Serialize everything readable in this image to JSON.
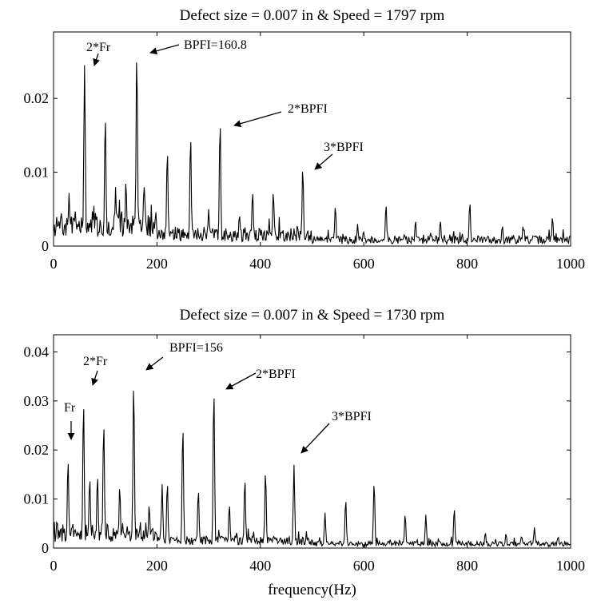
{
  "chart_data": [
    {
      "type": "line",
      "title": "Defect size = 0.007 in & Speed = 1797 rpm",
      "xlabel": "",
      "ylabel": "",
      "xlim": [
        0,
        1000
      ],
      "ylim": [
        0,
        0.029
      ],
      "xticks": [
        "0",
        "200",
        "400",
        "600",
        "800",
        "1000"
      ],
      "yticks": [
        "0",
        "0.01",
        "0.02"
      ],
      "ytick_values": [
        0,
        0.01,
        0.02
      ],
      "series": [
        {
          "peaks": [
            [
              30,
              0.0072
            ],
            [
              60,
              0.0245
            ],
            [
              100,
              0.0178
            ],
            [
              120,
              0.008
            ],
            [
              140,
              0.009
            ],
            [
              161,
              0.0265
            ],
            [
              175,
              0.0085
            ],
            [
              220,
              0.013
            ],
            [
              265,
              0.015
            ],
            [
              300,
              0.005
            ],
            [
              322,
              0.017
            ],
            [
              360,
              0.004
            ],
            [
              385,
              0.0075
            ],
            [
              425,
              0.0075
            ],
            [
              482,
              0.0107
            ],
            [
              545,
              0.0055
            ],
            [
              588,
              0.003
            ],
            [
              643,
              0.0057
            ],
            [
              700,
              0.0035
            ],
            [
              748,
              0.0035
            ],
            [
              805,
              0.006
            ],
            [
              868,
              0.0028
            ],
            [
              908,
              0.0028
            ],
            [
              965,
              0.004
            ]
          ]
        }
      ],
      "annotations": [
        {
          "text": "2*Fr",
          "x": 60,
          "y": 0.0245
        },
        {
          "text": "BPFI=160.8",
          "x": 161,
          "y": 0.0265
        },
        {
          "text": "2*BPFI",
          "x": 322,
          "y": 0.017
        },
        {
          "text": "3*BPFI",
          "x": 482,
          "y": 0.0107
        }
      ]
    },
    {
      "type": "line",
      "title": "Defect size = 0.007 in & Speed = 1730 rpm",
      "xlabel": "frequency(Hz)",
      "ylabel": "",
      "xlim": [
        0,
        1000
      ],
      "ylim": [
        0,
        0.0435
      ],
      "xticks": [
        "0",
        "200",
        "400",
        "600",
        "800",
        "1000"
      ],
      "yticks": [
        "0",
        "0.01",
        "0.02",
        "0.03",
        "0.04"
      ],
      "ytick_values": [
        0,
        0.01,
        0.02,
        0.03,
        0.04
      ],
      "series": [
        {
          "peaks": [
            [
              28,
              0.0183
            ],
            [
              58,
              0.0302
            ],
            [
              70,
              0.0145
            ],
            [
              85,
              0.015
            ],
            [
              97,
              0.0258
            ],
            [
              128,
              0.0128
            ],
            [
              155,
              0.0342
            ],
            [
              185,
              0.009
            ],
            [
              210,
              0.013
            ],
            [
              220,
              0.0135
            ],
            [
              250,
              0.025
            ],
            [
              280,
              0.012
            ],
            [
              310,
              0.0325
            ],
            [
              340,
              0.009
            ],
            [
              370,
              0.0142
            ],
            [
              410,
              0.0158
            ],
            [
              465,
              0.017
            ],
            [
              525,
              0.0072
            ],
            [
              565,
              0.01
            ],
            [
              620,
              0.0135
            ],
            [
              680,
              0.007
            ],
            [
              720,
              0.0068
            ],
            [
              775,
              0.0082
            ],
            [
              835,
              0.0032
            ],
            [
              875,
              0.003
            ],
            [
              930,
              0.0042
            ]
          ]
        }
      ],
      "annotations": [
        {
          "text": "Fr",
          "x": 28,
          "y": 0.0183
        },
        {
          "text": "2*Fr",
          "x": 58,
          "y": 0.0302
        },
        {
          "text": "BPFI=156",
          "x": 155,
          "y": 0.0342
        },
        {
          "text": "2*BPFI",
          "x": 310,
          "y": 0.0325
        },
        {
          "text": "3*BPFI",
          "x": 465,
          "y": 0.017
        }
      ]
    }
  ]
}
